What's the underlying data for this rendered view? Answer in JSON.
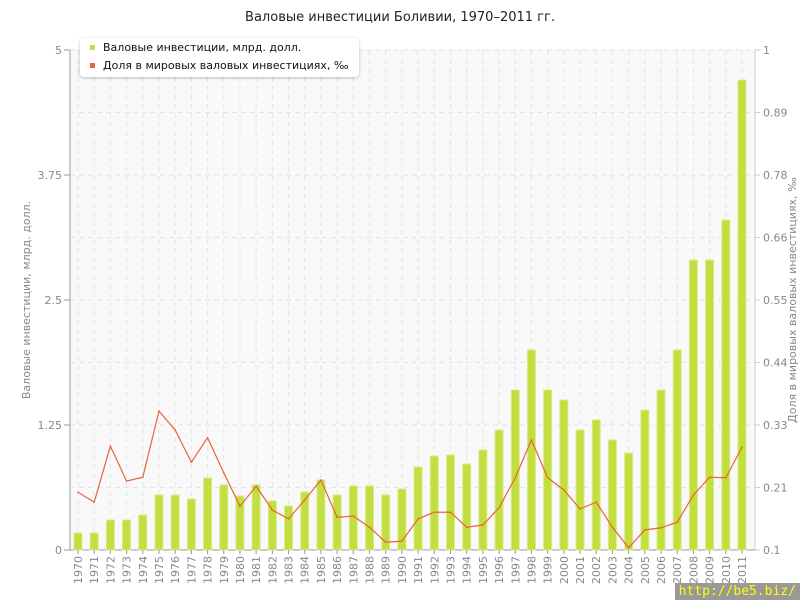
{
  "chart_data": {
    "type": "bar+line",
    "title": "Валовые инвестиции Боливии, 1970–2011 гг.",
    "ylabel": "Валовые инвестиции, млрд. долл.",
    "y2label": "Доля в мировых валовых инвестициях, ‰",
    "ylim": [
      0,
      5
    ],
    "y2lim": [
      0.1,
      1
    ],
    "yticks": [
      "0",
      "1.25",
      "2.5",
      "3.75",
      "5"
    ],
    "y2ticks": [
      "0.1",
      "0.21",
      "0.33",
      "0.44",
      "0.55",
      "0.66",
      "0.78",
      "0.89",
      "1"
    ],
    "grid": true,
    "legend_position": "top-left",
    "categories": [
      "1970",
      "1971",
      "1972",
      "1973",
      "1974",
      "1975",
      "1976",
      "1977",
      "1978",
      "1979",
      "1980",
      "1981",
      "1982",
      "1983",
      "1984",
      "1985",
      "1986",
      "1987",
      "1988",
      "1989",
      "1990",
      "1991",
      "1992",
      "1993",
      "1994",
      "1995",
      "1996",
      "1997",
      "1998",
      "1999",
      "2000",
      "2001",
      "2002",
      "2003",
      "2004",
      "2005",
      "2006",
      "2007",
      "2008",
      "2009",
      "2010",
      "2011"
    ],
    "series": [
      {
        "name": "Валовые инвестиции, млрд. долл.",
        "type": "bar",
        "axis": "left",
        "color": "#c3de3f",
        "values": [
          0.17,
          0.17,
          0.3,
          0.3,
          0.35,
          0.55,
          0.55,
          0.51,
          0.72,
          0.65,
          0.54,
          0.65,
          0.49,
          0.44,
          0.58,
          0.7,
          0.55,
          0.64,
          0.64,
          0.55,
          0.61,
          0.83,
          0.94,
          0.95,
          0.86,
          1.0,
          1.2,
          1.6,
          2.0,
          1.6,
          1.5,
          1.2,
          1.3,
          1.1,
          0.97,
          1.4,
          1.6,
          2.0,
          2.9,
          2.9,
          3.3,
          4.7
        ]
      },
      {
        "name": "Доля в мировых валовых инвестициях, ‰",
        "type": "line",
        "axis": "right",
        "color": "#e8643a",
        "values": [
          0.204,
          0.186,
          0.287,
          0.224,
          0.231,
          0.35,
          0.316,
          0.258,
          0.302,
          0.239,
          0.179,
          0.215,
          0.172,
          0.156,
          0.19,
          0.226,
          0.159,
          0.161,
          0.141,
          0.114,
          0.116,
          0.156,
          0.168,
          0.168,
          0.141,
          0.145,
          0.176,
          0.23,
          0.298,
          0.23,
          0.208,
          0.174,
          0.186,
          0.141,
          0.104,
          0.136,
          0.14,
          0.15,
          0.199,
          0.231,
          0.23,
          0.285
        ]
      }
    ]
  },
  "watermark": "http://be5.biz/"
}
